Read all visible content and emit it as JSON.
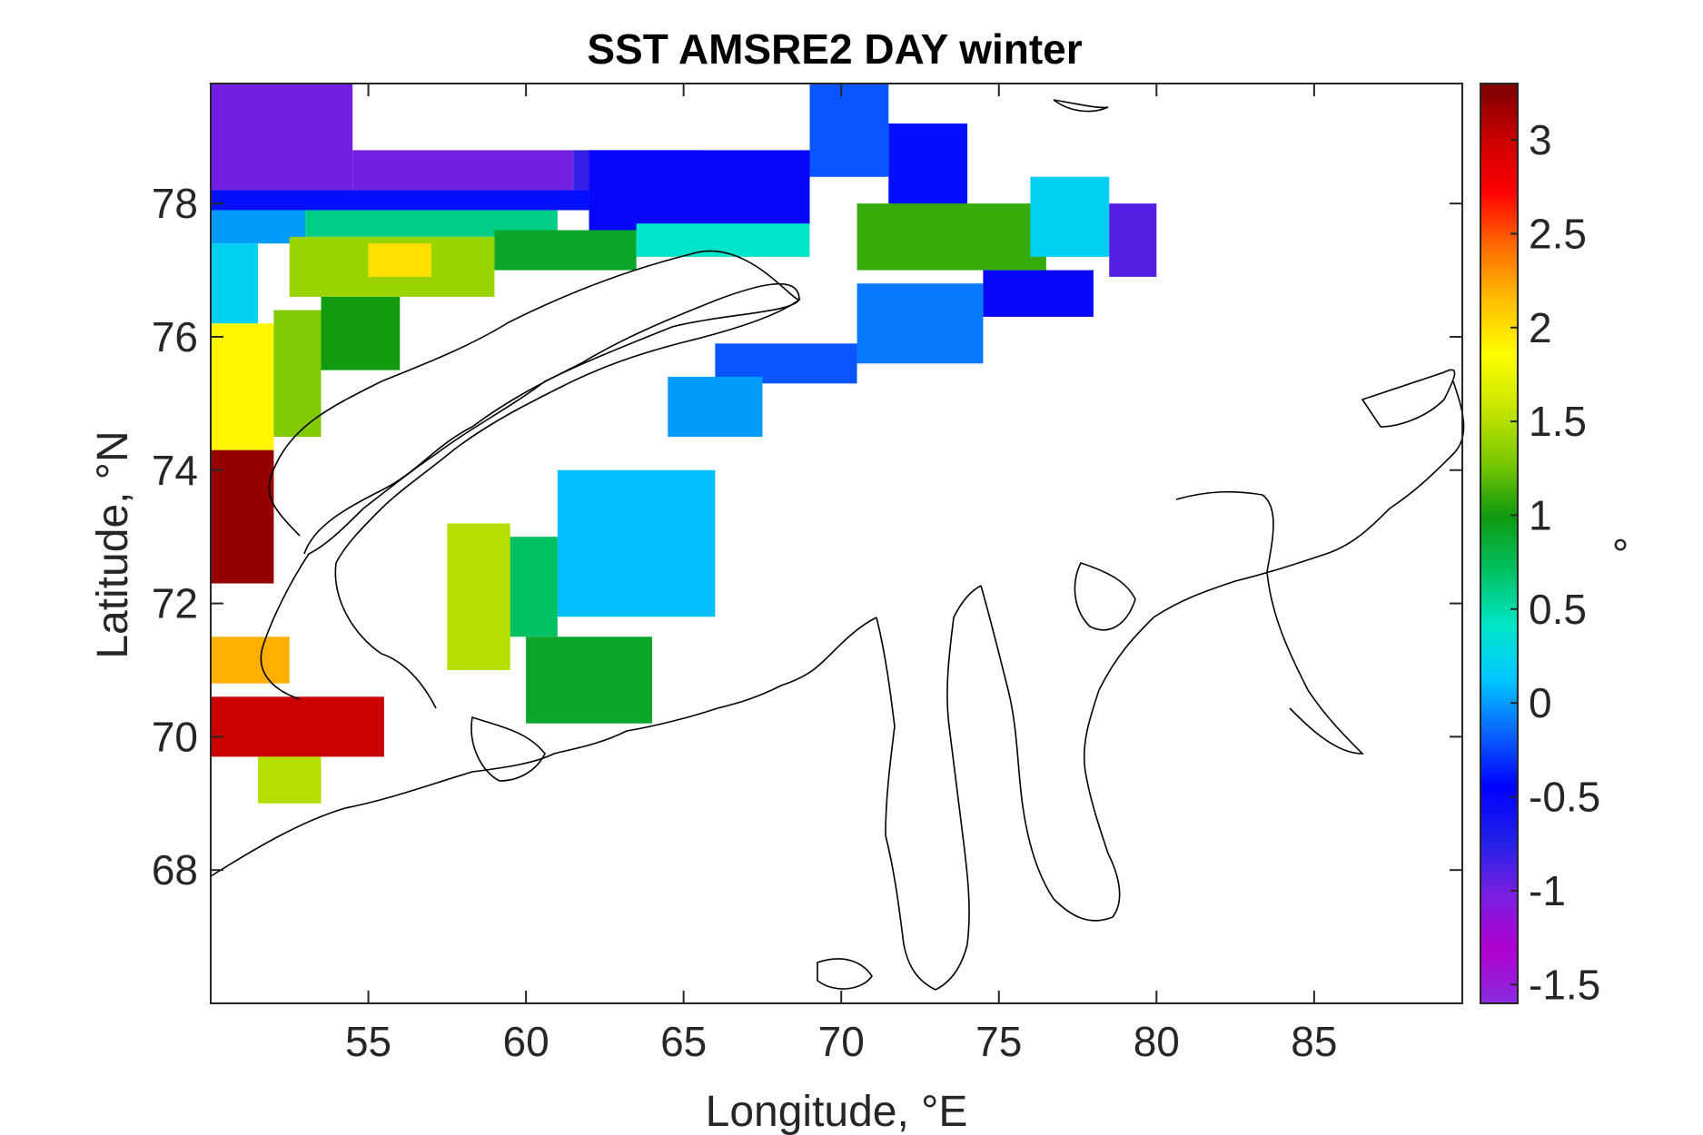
{
  "chart_data": {
    "type": "heatmap",
    "title": "SST AMSRE2 DAY winter",
    "xlabel": "Longitude, °E",
    "ylabel": "Latitude, °N",
    "xlim": [
      50.0,
      89.7
    ],
    "ylim": [
      66.0,
      79.8
    ],
    "x_ticks": [
      55,
      60,
      65,
      70,
      75,
      80,
      85
    ],
    "y_ticks": [
      68,
      70,
      72,
      74,
      76,
      78
    ],
    "colorbar": {
      "label": "°",
      "range": [
        -1.6,
        3.3
      ],
      "ticks": [
        -1.5,
        -1,
        -0.5,
        0,
        0.5,
        1,
        1.5,
        2,
        2.5,
        3
      ],
      "colormap": [
        "#8a2be2",
        "#b000d0",
        "#7a1fe0",
        "#2020e8",
        "#0000ff",
        "#0a64ff",
        "#00c8ff",
        "#00e6c8",
        "#00c060",
        "#109a10",
        "#7ac800",
        "#c8e600",
        "#ffff00",
        "#ffbe00",
        "#ff6a00",
        "#ff0000",
        "#c80000",
        "#7a0000"
      ]
    },
    "grid": false,
    "regions": [
      {
        "lon": [
          50.0,
          54.5
        ],
        "lat": [
          78.2,
          79.8
        ],
        "value": -1.0
      },
      {
        "lon": [
          54.5,
          61.5
        ],
        "lat": [
          78.2,
          78.8
        ],
        "value": -1.0
      },
      {
        "lon": [
          61.5,
          65.5
        ],
        "lat": [
          78.2,
          78.8
        ],
        "value": -0.8
      },
      {
        "lon": [
          50.0,
          62.0
        ],
        "lat": [
          77.9,
          78.2
        ],
        "value": -0.4
      },
      {
        "lon": [
          62.0,
          69.0
        ],
        "lat": [
          77.6,
          78.8
        ],
        "value": -0.5
      },
      {
        "lon": [
          69.0,
          71.5
        ],
        "lat": [
          78.4,
          79.8
        ],
        "value": -0.2
      },
      {
        "lon": [
          71.5,
          74.0
        ],
        "lat": [
          77.8,
          79.2
        ],
        "value": -0.4
      },
      {
        "lon": [
          50.0,
          53.0
        ],
        "lat": [
          77.4,
          77.9
        ],
        "value": 0.0
      },
      {
        "lon": [
          53.0,
          61.0
        ],
        "lat": [
          77.5,
          77.9
        ],
        "value": 0.6
      },
      {
        "lon": [
          52.5,
          59.0
        ],
        "lat": [
          76.6,
          77.5
        ],
        "value": 1.4
      },
      {
        "lon": [
          55.0,
          57.0
        ],
        "lat": [
          76.9,
          77.4
        ],
        "value": 2.0
      },
      {
        "lon": [
          59.0,
          63.5
        ],
        "lat": [
          77.0,
          77.6
        ],
        "value": 0.9
      },
      {
        "lon": [
          63.5,
          69.0
        ],
        "lat": [
          77.2,
          77.7
        ],
        "value": 0.4
      },
      {
        "lon": [
          70.5,
          76.5
        ],
        "lat": [
          77.0,
          78.0
        ],
        "value": 1.1
      },
      {
        "lon": [
          76.0,
          78.5
        ],
        "lat": [
          77.2,
          78.4
        ],
        "value": 0.2
      },
      {
        "lon": [
          78.5,
          80.0
        ],
        "lat": [
          76.9,
          78.0
        ],
        "value": -0.9
      },
      {
        "lon": [
          74.5,
          78.0
        ],
        "lat": [
          76.3,
          77.0
        ],
        "value": -0.5
      },
      {
        "lon": [
          70.5,
          74.5
        ],
        "lat": [
          75.6,
          76.8
        ],
        "value": -0.1
      },
      {
        "lon": [
          66.0,
          70.5
        ],
        "lat": [
          75.3,
          75.9
        ],
        "value": -0.2
      },
      {
        "lon": [
          64.5,
          67.5
        ],
        "lat": [
          74.5,
          75.4
        ],
        "value": 0.0
      },
      {
        "lon": [
          50.0,
          51.5
        ],
        "lat": [
          76.2,
          77.4
        ],
        "value": 0.2
      },
      {
        "lon": [
          50.0,
          52.0
        ],
        "lat": [
          74.3,
          76.2
        ],
        "value": 1.9
      },
      {
        "lon": [
          52.0,
          53.5
        ],
        "lat": [
          74.5,
          76.4
        ],
        "value": 1.3
      },
      {
        "lon": [
          53.5,
          56.0
        ],
        "lat": [
          75.5,
          76.6
        ],
        "value": 1.0
      },
      {
        "lon": [
          50.0,
          52.0
        ],
        "lat": [
          72.3,
          74.3
        ],
        "value": 3.2
      },
      {
        "lon": [
          61.0,
          66.0
        ],
        "lat": [
          71.8,
          74.0
        ],
        "value": 0.1
      },
      {
        "lon": [
          59.0,
          61.0
        ],
        "lat": [
          71.5,
          73.0
        ],
        "value": 0.7
      },
      {
        "lon": [
          57.5,
          59.5
        ],
        "lat": [
          71.0,
          73.2
        ],
        "value": 1.5
      },
      {
        "lon": [
          60.0,
          64.0
        ],
        "lat": [
          70.2,
          71.5
        ],
        "value": 0.9
      },
      {
        "lon": [
          50.0,
          52.5
        ],
        "lat": [
          70.8,
          71.5
        ],
        "value": 2.2
      },
      {
        "lon": [
          50.0,
          55.5
        ],
        "lat": [
          69.7,
          70.6
        ],
        "value": 3.0
      },
      {
        "lon": [
          51.5,
          53.5
        ],
        "lat": [
          69.0,
          69.7
        ],
        "value": 1.5
      }
    ]
  },
  "colors": {
    "axis": "#262626",
    "coastline": "#000000",
    "background": "#ffffff"
  }
}
